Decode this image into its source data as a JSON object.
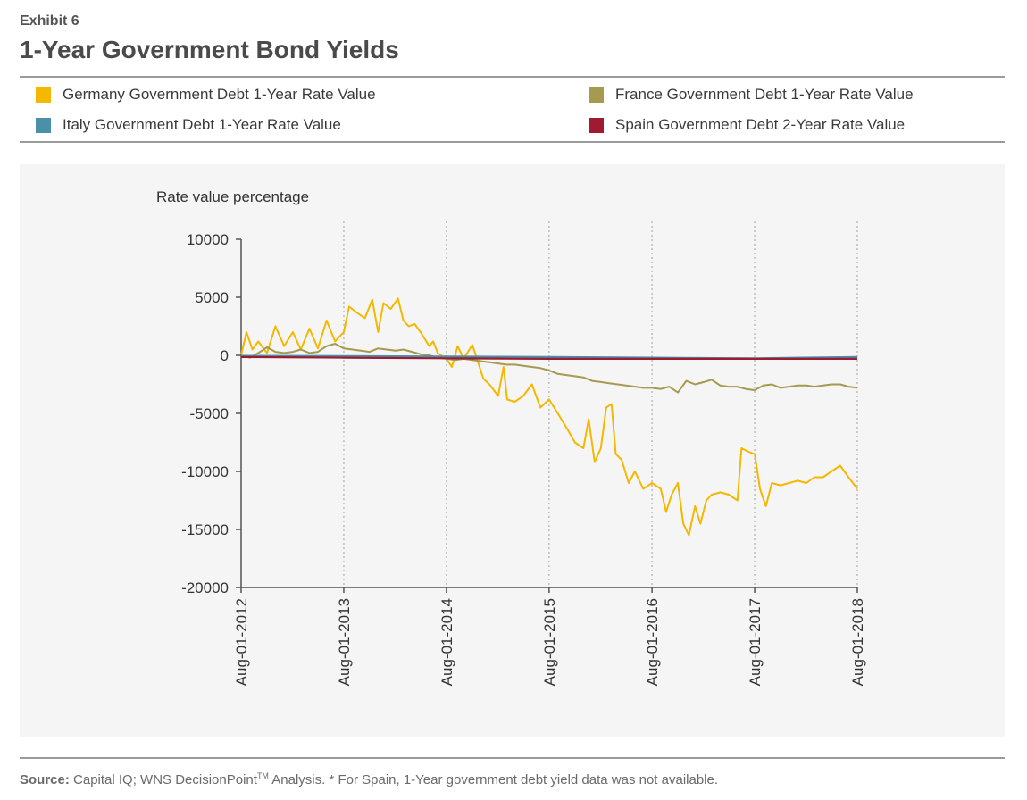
{
  "header": {
    "exhibit": "Exhibit 6",
    "title": "1-Year Government Bond Yields"
  },
  "source": {
    "label": "Source:",
    "text_before_tm": " Capital IQ; WNS DecisionPoint",
    "tm": "TM",
    "text_after_tm": " Analysis. * For Spain, 1-Year government debt yield data was not available."
  },
  "chart_data": {
    "type": "line",
    "ylabel": "Rate value percentage",
    "xlabel": "",
    "ylim": [
      -20000,
      10000
    ],
    "yticks": [
      10000,
      5000,
      0,
      -5000,
      -10000,
      -15000,
      -20000
    ],
    "ytick_labels": [
      "10000",
      "5000",
      "0",
      "-5000",
      "-10000",
      "-15000",
      "-20000"
    ],
    "xlim": [
      "2012-08-01",
      "2018-08-01"
    ],
    "xticks": [
      "2012-08-01",
      "2013-08-01",
      "2014-08-01",
      "2015-08-01",
      "2016-08-01",
      "2017-08-01",
      "2018-08-01"
    ],
    "xtick_labels": [
      "Aug-01-2012",
      "Aug-01-2013",
      "Aug-01-2014",
      "Aug-01-2015",
      "Aug-01-2016",
      "Aug-01-2017",
      "Aug-01-2018"
    ],
    "grid": "vertical dotted",
    "legend_position": "top",
    "series": [
      {
        "name": "Germany Government Debt 1-Year Rate Value",
        "color": "#f5b800",
        "points": [
          [
            "2012-08-01",
            0
          ],
          [
            "2012-08-20",
            2000
          ],
          [
            "2012-09-10",
            500
          ],
          [
            "2012-10-01",
            1200
          ],
          [
            "2012-11-01",
            200
          ],
          [
            "2012-12-01",
            2500
          ],
          [
            "2013-01-01",
            800
          ],
          [
            "2013-02-01",
            2000
          ],
          [
            "2013-03-01",
            500
          ],
          [
            "2013-04-01",
            2300
          ],
          [
            "2013-05-01",
            600
          ],
          [
            "2013-06-01",
            3000
          ],
          [
            "2013-07-01",
            1200
          ],
          [
            "2013-08-01",
            2000
          ],
          [
            "2013-08-20",
            4200
          ],
          [
            "2013-09-15",
            3700
          ],
          [
            "2013-10-15",
            3200
          ],
          [
            "2013-11-10",
            4800
          ],
          [
            "2013-12-01",
            2000
          ],
          [
            "2013-12-20",
            4500
          ],
          [
            "2014-01-15",
            4000
          ],
          [
            "2014-02-10",
            4900
          ],
          [
            "2014-03-01",
            3000
          ],
          [
            "2014-03-20",
            2500
          ],
          [
            "2014-04-10",
            2700
          ],
          [
            "2014-05-01",
            2000
          ],
          [
            "2014-06-01",
            800
          ],
          [
            "2014-06-15",
            1200
          ],
          [
            "2014-07-01",
            200
          ],
          [
            "2014-08-01",
            -300
          ],
          [
            "2014-08-20",
            -1000
          ],
          [
            "2014-09-10",
            800
          ],
          [
            "2014-10-01",
            -300
          ],
          [
            "2014-11-01",
            900
          ],
          [
            "2014-11-20",
            -500
          ],
          [
            "2014-12-10",
            -2000
          ],
          [
            "2015-01-01",
            -2500
          ],
          [
            "2015-02-01",
            -3500
          ],
          [
            "2015-02-20",
            -1000
          ],
          [
            "2015-03-05",
            -3800
          ],
          [
            "2015-04-01",
            -4000
          ],
          [
            "2015-05-01",
            -3500
          ],
          [
            "2015-06-01",
            -2500
          ],
          [
            "2015-07-01",
            -4500
          ],
          [
            "2015-08-01",
            -3800
          ],
          [
            "2015-09-01",
            -5000
          ],
          [
            "2015-10-01",
            -6200
          ],
          [
            "2015-11-01",
            -7500
          ],
          [
            "2015-12-01",
            -8000
          ],
          [
            "2015-12-20",
            -5500
          ],
          [
            "2016-01-10",
            -9200
          ],
          [
            "2016-02-01",
            -8000
          ],
          [
            "2016-02-20",
            -4500
          ],
          [
            "2016-03-10",
            -4200
          ],
          [
            "2016-03-25",
            -8500
          ],
          [
            "2016-04-15",
            -9000
          ],
          [
            "2016-05-10",
            -11000
          ],
          [
            "2016-06-01",
            -10000
          ],
          [
            "2016-07-01",
            -11500
          ],
          [
            "2016-08-01",
            -11000
          ],
          [
            "2016-09-01",
            -11500
          ],
          [
            "2016-09-20",
            -13500
          ],
          [
            "2016-10-10",
            -12000
          ],
          [
            "2016-11-01",
            -11000
          ],
          [
            "2016-11-20",
            -14500
          ],
          [
            "2016-12-10",
            -15500
          ],
          [
            "2017-01-01",
            -13000
          ],
          [
            "2017-01-20",
            -14500
          ],
          [
            "2017-02-10",
            -12500
          ],
          [
            "2017-03-01",
            -12000
          ],
          [
            "2017-04-01",
            -11800
          ],
          [
            "2017-05-01",
            -12000
          ],
          [
            "2017-06-01",
            -12500
          ],
          [
            "2017-06-15",
            -8000
          ],
          [
            "2017-07-10",
            -8300
          ],
          [
            "2017-08-01",
            -8500
          ],
          [
            "2017-08-20",
            -11500
          ],
          [
            "2017-09-10",
            -13000
          ],
          [
            "2017-10-01",
            -11000
          ],
          [
            "2017-11-01",
            -11200
          ],
          [
            "2017-12-01",
            -11000
          ],
          [
            "2018-01-01",
            -10800
          ],
          [
            "2018-02-01",
            -11000
          ],
          [
            "2018-03-01",
            -10500
          ],
          [
            "2018-04-01",
            -10500
          ],
          [
            "2018-05-01",
            -10000
          ],
          [
            "2018-06-01",
            -9500
          ],
          [
            "2018-07-01",
            -10500
          ],
          [
            "2018-08-01",
            -11500
          ]
        ]
      },
      {
        "name": "France Government Debt 1-Year Rate Value",
        "color": "#a59a4e",
        "points": [
          [
            "2012-08-01",
            0
          ],
          [
            "2012-09-01",
            -200
          ],
          [
            "2012-10-01",
            200
          ],
          [
            "2012-11-01",
            700
          ],
          [
            "2012-12-01",
            300
          ],
          [
            "2013-01-01",
            200
          ],
          [
            "2013-02-01",
            300
          ],
          [
            "2013-03-01",
            500
          ],
          [
            "2013-04-01",
            200
          ],
          [
            "2013-05-01",
            300
          ],
          [
            "2013-06-01",
            800
          ],
          [
            "2013-07-01",
            1000
          ],
          [
            "2013-08-01",
            600
          ],
          [
            "2013-09-01",
            500
          ],
          [
            "2013-10-01",
            400
          ],
          [
            "2013-11-01",
            300
          ],
          [
            "2013-12-01",
            600
          ],
          [
            "2014-01-01",
            500
          ],
          [
            "2014-02-01",
            400
          ],
          [
            "2014-03-01",
            500
          ],
          [
            "2014-04-01",
            300
          ],
          [
            "2014-05-01",
            100
          ],
          [
            "2014-06-01",
            0
          ],
          [
            "2014-07-01",
            -200
          ],
          [
            "2014-08-01",
            -300
          ],
          [
            "2014-09-01",
            -400
          ],
          [
            "2014-10-01",
            -300
          ],
          [
            "2014-11-01",
            -400
          ],
          [
            "2014-12-01",
            -500
          ],
          [
            "2015-01-01",
            -600
          ],
          [
            "2015-02-01",
            -700
          ],
          [
            "2015-03-01",
            -800
          ],
          [
            "2015-04-01",
            -800
          ],
          [
            "2015-05-01",
            -900
          ],
          [
            "2015-06-01",
            -1000
          ],
          [
            "2015-07-01",
            -1100
          ],
          [
            "2015-08-01",
            -1300
          ],
          [
            "2015-09-01",
            -1600
          ],
          [
            "2015-10-01",
            -1700
          ],
          [
            "2015-11-01",
            -1800
          ],
          [
            "2015-12-01",
            -1900
          ],
          [
            "2016-01-01",
            -2200
          ],
          [
            "2016-02-01",
            -2300
          ],
          [
            "2016-03-01",
            -2400
          ],
          [
            "2016-04-01",
            -2500
          ],
          [
            "2016-05-01",
            -2600
          ],
          [
            "2016-06-01",
            -2700
          ],
          [
            "2016-07-01",
            -2800
          ],
          [
            "2016-08-01",
            -2800
          ],
          [
            "2016-09-01",
            -2900
          ],
          [
            "2016-10-01",
            -2700
          ],
          [
            "2016-11-01",
            -3200
          ],
          [
            "2016-12-01",
            -2200
          ],
          [
            "2017-01-01",
            -2500
          ],
          [
            "2017-02-01",
            -2300
          ],
          [
            "2017-03-01",
            -2100
          ],
          [
            "2017-04-01",
            -2600
          ],
          [
            "2017-05-01",
            -2700
          ],
          [
            "2017-06-01",
            -2700
          ],
          [
            "2017-07-01",
            -2900
          ],
          [
            "2017-08-01",
            -3000
          ],
          [
            "2017-09-01",
            -2600
          ],
          [
            "2017-10-01",
            -2500
          ],
          [
            "2017-11-01",
            -2800
          ],
          [
            "2017-12-01",
            -2700
          ],
          [
            "2018-01-01",
            -2600
          ],
          [
            "2018-02-01",
            -2600
          ],
          [
            "2018-03-01",
            -2700
          ],
          [
            "2018-04-01",
            -2600
          ],
          [
            "2018-05-01",
            -2500
          ],
          [
            "2018-06-01",
            -2500
          ],
          [
            "2018-07-01",
            -2700
          ],
          [
            "2018-08-01",
            -2800
          ]
        ]
      },
      {
        "name": "Italy Government Debt 1-Year Rate Value",
        "color": "#4a90a8",
        "points": [
          [
            "2012-08-01",
            -50
          ],
          [
            "2013-08-01",
            -60
          ],
          [
            "2014-08-01",
            -100
          ],
          [
            "2015-08-01",
            -150
          ],
          [
            "2016-08-01",
            -200
          ],
          [
            "2017-08-01",
            -250
          ],
          [
            "2018-08-01",
            -150
          ]
        ]
      },
      {
        "name": "Spain Government Debt 2-Year Rate Value",
        "color": "#9e1b32",
        "points": [
          [
            "2012-08-01",
            -150
          ],
          [
            "2013-08-01",
            -200
          ],
          [
            "2014-08-01",
            -250
          ],
          [
            "2015-08-01",
            -300
          ],
          [
            "2016-08-01",
            -300
          ],
          [
            "2017-08-01",
            -300
          ],
          [
            "2018-08-01",
            -300
          ]
        ]
      }
    ]
  }
}
